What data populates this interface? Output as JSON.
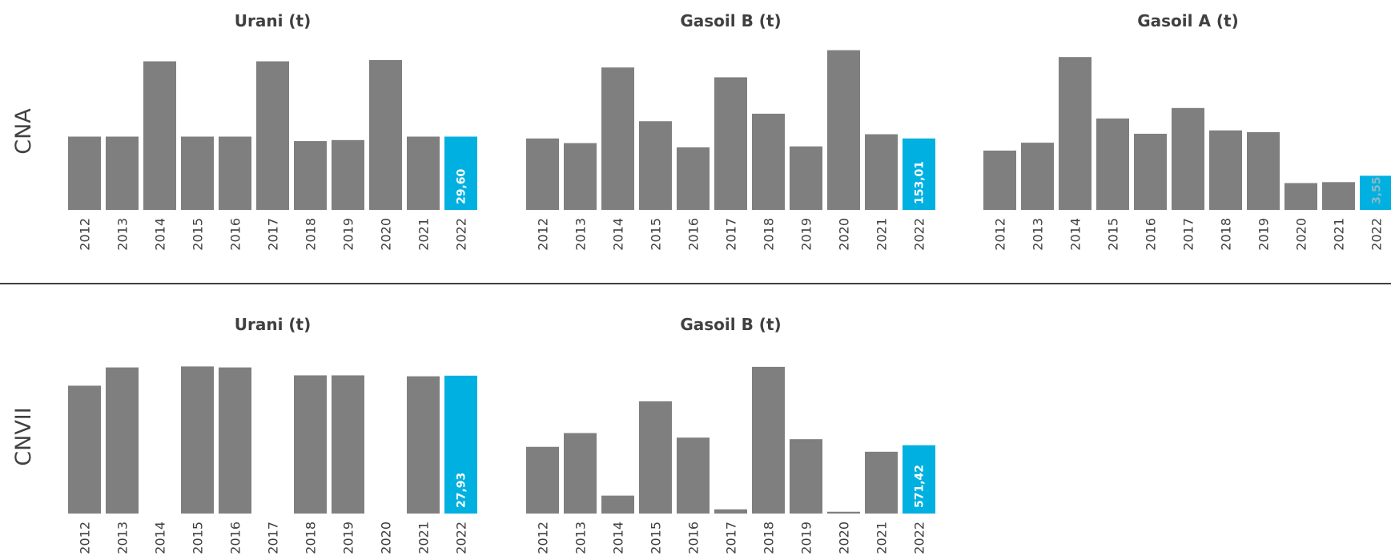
{
  "colors": {
    "bar": "#7f7f7f",
    "highlight": "#00b0e0",
    "label_on_highlight": "#ffffff",
    "label_faint": "#8ab8c6",
    "text": "#404040",
    "divider": "#000000"
  },
  "rows": [
    {
      "label": "CNA"
    },
    {
      "label": "CNVII"
    }
  ],
  "chart_data": [
    {
      "type": "bar",
      "row": "CNA",
      "title": "Urani (t)",
      "categories": [
        "2012",
        "2013",
        "2014",
        "2015",
        "2016",
        "2017",
        "2018",
        "2019",
        "2020",
        "2021",
        "2022"
      ],
      "values": [
        29.6,
        29.6,
        60,
        29.6,
        29.6,
        60,
        27.8,
        28.2,
        60.5,
        29.6,
        29.6
      ],
      "ylim": [
        0,
        66
      ],
      "highlight_index": 10,
      "highlight_label": "29,60"
    },
    {
      "type": "bar",
      "row": "CNA",
      "title": "Gasoil B (t)",
      "categories": [
        "2012",
        "2013",
        "2014",
        "2015",
        "2016",
        "2017",
        "2018",
        "2019",
        "2020",
        "2021",
        "2022"
      ],
      "values": [
        153,
        143,
        305,
        190,
        134,
        284,
        206,
        136,
        342,
        162,
        153.01
      ],
      "ylim": [
        0,
        350
      ],
      "highlight_index": 10,
      "highlight_label": "153,01"
    },
    {
      "type": "bar",
      "row": "CNA",
      "title": "Gasoil A (t)",
      "categories": [
        "2012",
        "2013",
        "2014",
        "2015",
        "2016",
        "2017",
        "2018",
        "2019",
        "2020",
        "2021",
        "2022"
      ],
      "values": [
        6.17,
        6.99,
        15.9,
        9.51,
        7.92,
        10.6,
        8.27,
        8.09,
        2.79,
        2.89,
        3.55
      ],
      "ylim": [
        0,
        17
      ],
      "highlight_index": 10,
      "highlight_label": "3,55"
    },
    {
      "type": "bar",
      "row": "CNVII",
      "title": "Urani (t)",
      "categories": [
        "2012",
        "2013",
        "2014",
        "2015",
        "2016",
        "2017",
        "2018",
        "2019",
        "2020",
        "2021",
        "2022"
      ],
      "values": [
        25.9,
        29.6,
        0,
        29.8,
        29.6,
        0,
        28.0,
        28.0,
        0,
        27.8,
        27.93
      ],
      "ylim": [
        0,
        31
      ],
      "highlight_index": 10,
      "highlight_label": "27,93"
    },
    {
      "type": "bar",
      "row": "CNVII",
      "title": "Gasoil B (t)",
      "categories": [
        "2012",
        "2013",
        "2014",
        "2015",
        "2016",
        "2017",
        "2018",
        "2019",
        "2020",
        "2021",
        "2022"
      ],
      "values": [
        558,
        673,
        150,
        939,
        635,
        35,
        1227,
        622,
        15,
        517,
        571.42
      ],
      "ylim": [
        0,
        1280
      ],
      "highlight_index": 10,
      "highlight_label": "571,42"
    }
  ]
}
